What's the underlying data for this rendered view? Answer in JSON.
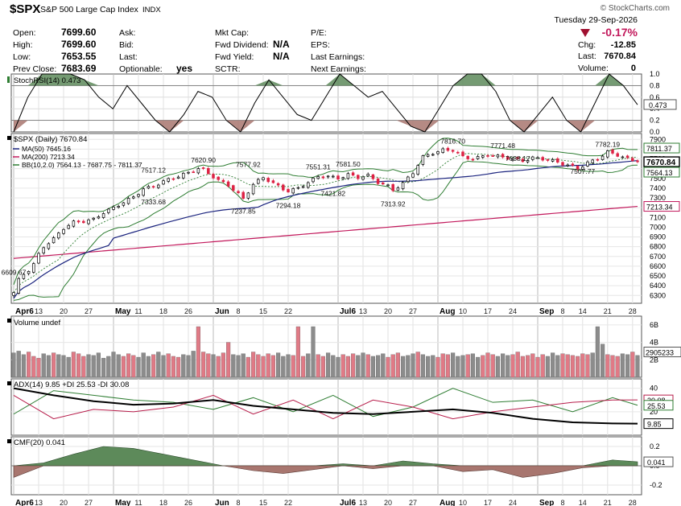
{
  "header": {
    "symbol": "$SPX",
    "name": "S&P 500 Large Cap Index",
    "exchange": "INDX",
    "copyright": "© StockCharts.com",
    "date": "Tuesday  29-Sep-2026",
    "change_pct": "-0.17%",
    "change_label": "Chg:",
    "change_value": "-12.85",
    "last_label": "Last:",
    "last_value": "7670.84",
    "volume_label": "Volume:",
    "volume_value": "0",
    "open_label": "Open:",
    "open_value": "7699.60",
    "high_label": "High:",
    "high_value": "7699.60",
    "low_label": "Low:",
    "low_value": "7653.55",
    "prevclose_label": "Prev Close:",
    "prevclose_value": "7683.69",
    "ask_label": "Ask:",
    "bid_label": "Bid:",
    "lastq_label": "Last:",
    "optionable_label": "Optionable:",
    "optionable_value": "yes",
    "mktcap_label": "Mkt Cap:",
    "fwddiv_label": "Fwd Dividend:",
    "fwddiv_value": "N/A",
    "fwdyield_label": "Fwd Yield:",
    "fwdyield_value": "N/A",
    "sctr_label": "SCTR:",
    "pe_label": "P/E:",
    "eps_label": "EPS:",
    "lastearn_label": "Last Earnings:",
    "nextearn_label": "Next Earnings:"
  },
  "colors": {
    "up_candle": "#ffffff",
    "down_candle": "#dd2244",
    "ma50": "#1a237e",
    "ma200": "#c2185b",
    "bb": "#2e7d32",
    "volume_up": "#8c8c8c",
    "volume_down": "#e07a86",
    "plus_di": "#2e7d32",
    "minus_di": "#b71c4a",
    "adx": "#000000",
    "cmf_pos": "#5d8a5a",
    "cmf_neg": "#a8766f",
    "stoch_fill": "#5d8a5a"
  },
  "chart_data": [
    {
      "type": "line",
      "panel": "stochrsi",
      "title": "StochRSI(14) 0.473",
      "y_ticks": [
        "1.0",
        "0.8",
        "0.6",
        "0.4",
        "0.2",
        "0.0"
      ],
      "last_value": "0.473",
      "ylim": [
        0,
        1
      ],
      "x": [
        0,
        4,
        8,
        12,
        16,
        20,
        24,
        28,
        32,
        36,
        40,
        44,
        48,
        52,
        56,
        60,
        64,
        68,
        72,
        76,
        80,
        84,
        88,
        92,
        96,
        100,
        104,
        108,
        112,
        116,
        120,
        124,
        128,
        132,
        136,
        140,
        144,
        148,
        152,
        156,
        160,
        164,
        168,
        172,
        176
      ],
      "values": [
        0.0,
        0.6,
        1.0,
        1.0,
        1.0,
        0.9,
        0.6,
        0.4,
        0.8,
        0.5,
        0.2,
        0.0,
        0.3,
        0.7,
        0.6,
        0.2,
        0.0,
        0.5,
        0.9,
        0.6,
        0.3,
        0.2,
        0.6,
        1.0,
        0.8,
        0.6,
        0.7,
        0.4,
        0.1,
        0.0,
        0.4,
        0.8,
        1.0,
        1.0,
        0.7,
        0.2,
        0.0,
        0.3,
        0.6,
        0.2,
        0.0,
        0.5,
        1.0,
        0.8,
        0.47
      ]
    },
    {
      "type": "candlestick",
      "panel": "price",
      "title": "$SPX (Daily) 7670.84",
      "legend": [
        "MA(50) 7645.16",
        "MA(200) 7213.34",
        "BB(10,2.0) 7564.13 - 7687.75 - 7811.37"
      ],
      "y_ticks": [
        6300,
        6400,
        6500,
        6600,
        6700,
        6800,
        6900,
        7000,
        7100,
        7200,
        7300,
        7400,
        7500,
        7600,
        7700,
        7800,
        7900
      ],
      "ylim": [
        6220,
        7960
      ],
      "x_ticks": [
        "Apr6",
        "13",
        "20",
        "27",
        "May",
        "11",
        "18",
        "26",
        "Jun",
        "8",
        "15",
        "22",
        "Jul6",
        "13",
        "20",
        "27",
        "Aug",
        "10",
        "17",
        "24",
        "Sep",
        "8",
        "14",
        "21",
        "28"
      ],
      "x_tick_index": [
        0,
        5,
        10,
        15,
        20,
        25,
        30,
        35,
        40,
        45,
        50,
        55,
        65,
        70,
        75,
        80,
        85,
        90,
        95,
        100,
        105,
        110,
        114,
        119,
        124
      ],
      "bold_ticks": [
        "Apr6",
        "May",
        "Jun",
        "Jul6",
        "Aug",
        "Sep"
      ],
      "annotations": [
        {
          "i": 0,
          "v": 6609.67,
          "text": "6609.67"
        },
        {
          "i": 38,
          "v": 7620.9,
          "text": "7620.90"
        },
        {
          "i": 28,
          "v": 7517.12,
          "text": "7517.12"
        },
        {
          "i": 28,
          "v": 7333.68,
          "text": "7333.68"
        },
        {
          "i": 46,
          "v": 7237.85,
          "text": "7237.85"
        },
        {
          "i": 47,
          "v": 7577.92,
          "text": "7577.92"
        },
        {
          "i": 55,
          "v": 7294.18,
          "text": "7294.18"
        },
        {
          "i": 61,
          "v": 7551.31,
          "text": "7551.31"
        },
        {
          "i": 67,
          "v": 7581.5,
          "text": "7581.50"
        },
        {
          "i": 64,
          "v": 7421.82,
          "text": "7421.82"
        },
        {
          "i": 76,
          "v": 7313.92,
          "text": "7313.92"
        },
        {
          "i": 88,
          "v": 7816.7,
          "text": "7816.70"
        },
        {
          "i": 98,
          "v": 7771.48,
          "text": "7771.48"
        },
        {
          "i": 101,
          "v": 7638.17,
          "text": "7638.17"
        },
        {
          "i": 114,
          "v": 7507.77,
          "text": "7507.77"
        },
        {
          "i": 119,
          "v": 7782.19,
          "text": "7782.19"
        }
      ],
      "badges": [
        {
          "v": 7811.37,
          "text": "7811.37",
          "fill": "#ffffff",
          "stroke": "#2e7d32"
        },
        {
          "v": 7670.84,
          "text": "7670.84",
          "fill": "#ffffff",
          "stroke": "#000000",
          "bold": true
        },
        {
          "v": 7564.13,
          "text": "7564.13",
          "fill": "#ffffff",
          "stroke": "#2e7d32"
        },
        {
          "v": 7213.34,
          "text": "7213.34",
          "fill": "#ffffff",
          "stroke": "#c2185b"
        }
      ],
      "close_anchors": [
        [
          0,
          6330
        ],
        [
          1,
          6460
        ],
        [
          2,
          6520
        ],
        [
          3,
          6560
        ],
        [
          4,
          6620
        ],
        [
          5,
          6720
        ],
        [
          6,
          6800
        ],
        [
          8,
          6880
        ],
        [
          10,
          6990
        ],
        [
          12,
          7050
        ],
        [
          14,
          7060
        ],
        [
          16,
          7080
        ],
        [
          18,
          7150
        ],
        [
          20,
          7200
        ],
        [
          24,
          7310
        ],
        [
          26,
          7390
        ],
        [
          28,
          7420
        ],
        [
          31,
          7490
        ],
        [
          33,
          7520
        ],
        [
          35,
          7560
        ],
        [
          37,
          7600
        ],
        [
          38,
          7590
        ],
        [
          41,
          7480
        ],
        [
          43,
          7430
        ],
        [
          45,
          7340
        ],
        [
          46,
          7290
        ],
        [
          48,
          7440
        ],
        [
          50,
          7510
        ],
        [
          52,
          7450
        ],
        [
          54,
          7390
        ],
        [
          55,
          7370
        ],
        [
          57,
          7400
        ],
        [
          59,
          7460
        ],
        [
          61,
          7520
        ],
        [
          63,
          7520
        ],
        [
          65,
          7500
        ],
        [
          67,
          7540
        ],
        [
          69,
          7510
        ],
        [
          71,
          7530
        ],
        [
          73,
          7460
        ],
        [
          75,
          7420
        ],
        [
          76,
          7380
        ],
        [
          78,
          7450
        ],
        [
          80,
          7560
        ],
        [
          82,
          7720
        ],
        [
          84,
          7760
        ],
        [
          86,
          7790
        ],
        [
          88,
          7790
        ],
        [
          90,
          7720
        ],
        [
          92,
          7700
        ],
        [
          95,
          7740
        ],
        [
          98,
          7720
        ],
        [
          100,
          7700
        ],
        [
          102,
          7680
        ],
        [
          104,
          7710
        ],
        [
          106,
          7700
        ],
        [
          108,
          7680
        ],
        [
          110,
          7650
        ],
        [
          112,
          7620
        ],
        [
          113,
          7600
        ],
        [
          115,
          7660
        ],
        [
          117,
          7700
        ],
        [
          119,
          7770
        ],
        [
          121,
          7740
        ],
        [
          123,
          7700
        ],
        [
          125,
          7670
        ]
      ]
    },
    {
      "type": "bar",
      "panel": "volume",
      "title": "Volume undef",
      "y_ticks": [
        "6B",
        "4B",
        "2B"
      ],
      "last_value": "2905233",
      "ylim": [
        0,
        7
      ],
      "values": [
        2.8,
        3.0,
        2.6,
        2.9,
        2.4,
        2.2,
        2.7,
        2.5,
        2.8,
        2.6,
        2.5,
        2.3,
        2.9,
        2.7,
        2.4,
        2.6,
        2.5,
        2.8,
        2.2,
        2.4,
        2.9,
        2.6,
        2.4,
        2.7,
        2.5,
        2.3,
        2.8,
        2.4,
        2.6,
        2.9,
        2.5,
        2.7,
        2.4,
        2.3,
        2.6,
        2.5,
        3.0,
        5.8,
        2.9,
        2.7,
        2.6,
        2.4,
        2.8,
        4.0,
        2.6,
        2.5,
        2.7,
        2.3,
        2.9,
        2.6,
        2.4,
        2.7,
        2.5,
        2.8,
        2.4,
        2.6,
        2.5,
        5.8,
        2.4,
        2.7,
        5.8,
        2.6,
        2.4,
        2.8,
        2.5,
        2.3,
        2.6,
        2.4,
        2.7,
        2.5,
        2.8,
        2.6,
        2.4,
        2.5,
        2.7,
        2.3,
        2.6,
        2.8,
        2.4,
        2.5,
        2.7,
        2.9,
        2.6,
        2.4,
        2.5,
        2.3,
        2.7,
        2.6,
        2.8,
        2.4,
        2.5,
        2.6,
        2.7,
        2.3,
        2.5,
        2.8,
        2.6,
        2.4,
        2.7,
        2.5,
        2.6,
        2.9,
        2.4,
        2.5,
        2.7,
        2.3,
        2.6,
        2.4,
        2.8,
        2.5,
        2.7,
        2.6,
        2.5,
        2.4,
        2.7,
        2.6,
        2.8,
        5.8,
        3.8,
        2.6,
        2.5,
        2.4,
        2.7,
        2.6,
        2.9,
        2.5
      ]
    },
    {
      "type": "line",
      "panel": "adx",
      "title": "ADX(14) 9.85 +DI 25.53 -DI 30.08",
      "y_ticks": [
        "40",
        "20"
      ],
      "badges": [
        {
          "v": 30.08,
          "text": "30.08",
          "stroke": "#b71c4a"
        },
        {
          "v": 25.53,
          "text": "25.53",
          "stroke": "#2e7d32"
        },
        {
          "v": 9.85,
          "text": "9.85",
          "stroke": "#000000"
        }
      ],
      "ylim": [
        0,
        48
      ],
      "x": [
        0,
        8,
        16,
        24,
        32,
        40,
        48,
        56,
        64,
        72,
        80,
        88,
        96,
        104,
        112,
        120,
        125
      ],
      "adx": [
        40,
        34,
        29,
        26,
        27,
        30,
        25,
        22,
        19,
        18,
        20,
        22,
        19,
        14,
        11,
        10,
        9.85
      ],
      "plus_di": [
        18,
        38,
        34,
        30,
        28,
        22,
        32,
        20,
        34,
        16,
        24,
        40,
        28,
        30,
        20,
        32,
        25.53
      ],
      "minus_di": [
        34,
        14,
        22,
        20,
        24,
        34,
        18,
        30,
        14,
        30,
        24,
        14,
        20,
        24,
        28,
        30,
        30.08
      ]
    },
    {
      "type": "area",
      "panel": "cmf",
      "title": "CMF(20) 0.041",
      "y_ticks": [
        "0.2",
        "0.0",
        "-0.2"
      ],
      "last_value": "0.041",
      "ylim": [
        -0.3,
        0.3
      ],
      "x": [
        0,
        6,
        12,
        18,
        24,
        30,
        36,
        42,
        48,
        54,
        60,
        66,
        72,
        78,
        84,
        90,
        96,
        102,
        108,
        114,
        120,
        125
      ],
      "values": [
        -0.12,
        0.03,
        0.12,
        0.2,
        0.18,
        0.12,
        0.06,
        0.0,
        -0.05,
        -0.08,
        -0.04,
        0.02,
        -0.03,
        0.05,
        0.02,
        -0.06,
        -0.04,
        -0.12,
        -0.08,
        -0.02,
        0.06,
        0.041
      ]
    }
  ]
}
